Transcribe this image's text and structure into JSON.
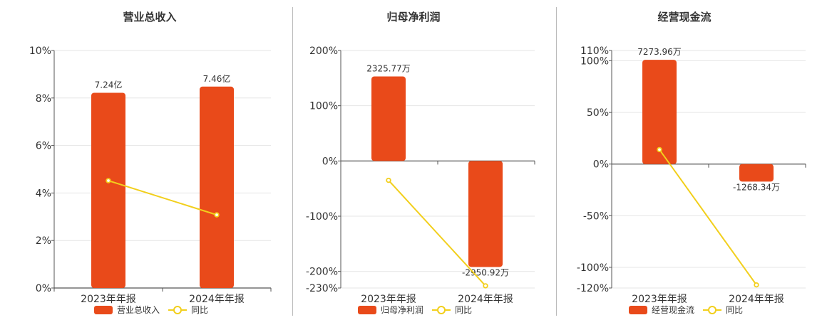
{
  "colors": {
    "bar": "#e94a1a",
    "line": "#f2cf1c",
    "grid": "#e6e6e6",
    "axis": "#555555",
    "text": "#333333",
    "divider": "#bbbbbb"
  },
  "chart_data": [
    {
      "type": "bar",
      "title": "营业总收入",
      "categories": [
        "2023年年报",
        "2024年年报"
      ],
      "series": [
        {
          "name": "营业总收入",
          "type": "bar",
          "values_pct": [
            8.22,
            8.48
          ],
          "data_labels": [
            "7.24亿",
            "7.46亿"
          ]
        },
        {
          "name": "同比",
          "type": "line",
          "values": [
            4.52,
            3.08
          ]
        }
      ],
      "ylim": [
        0,
        10
      ],
      "y_ticks": [
        0,
        2,
        4,
        6,
        8,
        10
      ],
      "y_tick_labels": [
        "0%",
        "2%",
        "4%",
        "6%",
        "8%",
        "10%"
      ],
      "legend_position": "bottom",
      "grid": true
    },
    {
      "type": "bar",
      "title": "归母净利润",
      "categories": [
        "2023年年报",
        "2024年年报"
      ],
      "series": [
        {
          "name": "归母净利润",
          "type": "bar",
          "values_pct": [
            153,
            -192
          ],
          "data_labels": [
            "2325.77万",
            "-2950.92万"
          ]
        },
        {
          "name": "同比",
          "type": "line",
          "values": [
            -35,
            -226
          ]
        }
      ],
      "ylim": [
        -230,
        200
      ],
      "y_ticks": [
        -230,
        -200,
        -100,
        0,
        100,
        200
      ],
      "y_tick_labels": [
        "-230%",
        "-200%",
        "-100%",
        "0%",
        "100%",
        "200%"
      ],
      "legend_position": "bottom",
      "grid": true
    },
    {
      "type": "bar",
      "title": "经营现金流",
      "categories": [
        "2023年年报",
        "2024年年报"
      ],
      "series": [
        {
          "name": "经营现金流",
          "type": "bar",
          "values_pct": [
            101,
            -17
          ],
          "data_labels": [
            "7273.96万",
            "-1268.34万"
          ]
        },
        {
          "name": "同比",
          "type": "line",
          "values": [
            14,
            -117
          ]
        }
      ],
      "ylim": [
        -120,
        110
      ],
      "y_ticks": [
        -120,
        -100,
        -50,
        0,
        50,
        100,
        110
      ],
      "y_tick_labels": [
        "-120%",
        "-100%",
        "-50%",
        "0%",
        "50%",
        "100%",
        "110%"
      ],
      "legend_position": "bottom",
      "grid": true
    }
  ]
}
